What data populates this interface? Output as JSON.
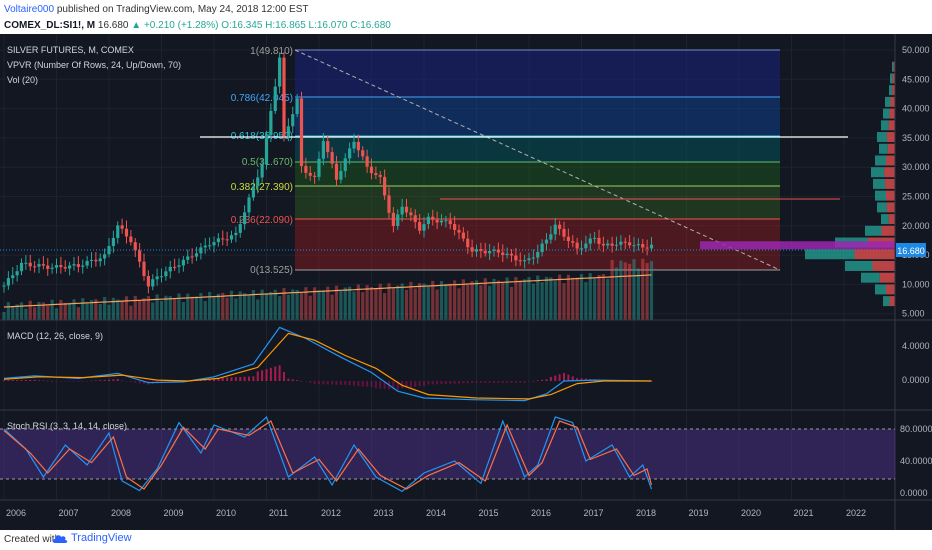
{
  "header": {
    "author": "Voltaire000",
    "published_text": "published on TradingView.com, May 24, 2018 12:00 EST",
    "symbol": "COMEX_DL:SI1!, M",
    "last": "16.680",
    "change": "+0.210 (+1.28%)",
    "ohlc_text": "O:16.345 H:16.865 L:16.070 C:16.680"
  },
  "legend": {
    "main": "SILVER FUTURES, M, COMEX",
    "vpvr": "VPVR (Number Of Rows, 24, Up/Down, 70)",
    "vol": "Vol (20)",
    "macd": "MACD (12, 26, close, 9)",
    "stoch": "Stoch RSI (3, 3, 14, 14, close)"
  },
  "footer": {
    "created_with": "Created with",
    "brand": "TradingView"
  },
  "colors": {
    "background": "#131722",
    "up": "#26a69a",
    "down": "#ef5350",
    "macd": "#2196f3",
    "signal": "#ff9800",
    "stoch_band": "#673ab7",
    "last_price_tag": "#1e88e5"
  },
  "chart_data": [
    {
      "type": "candlestick",
      "title": "SILVER FUTURES, M, COMEX",
      "x_ticks": [
        "2006",
        "2007",
        "2008",
        "2009",
        "2010",
        "2011",
        "2012",
        "2013",
        "2014",
        "2015",
        "2016",
        "2017",
        "2018",
        "2019",
        "2020",
        "2021",
        "2022"
      ],
      "y_ticks": [
        "50.000",
        "45.000",
        "40.000",
        "35.000",
        "30.000",
        "25.000",
        "20.000",
        "15.000",
        "10.000",
        "5.000"
      ],
      "ylim": [
        5,
        50
      ],
      "last_price_label": "16.680",
      "close_path": [
        [
          "2006-01",
          9.8
        ],
        [
          "2006-05",
          13.5
        ],
        [
          "2006-12",
          12.9
        ],
        [
          "2007-06",
          13.2
        ],
        [
          "2007-12",
          14.8
        ],
        [
          "2008-03",
          20.0
        ],
        [
          "2008-06",
          17.5
        ],
        [
          "2008-10",
          9.8
        ],
        [
          "2008-12",
          11.3
        ],
        [
          "2009-06",
          14.0
        ],
        [
          "2009-12",
          17.0
        ],
        [
          "2010-06",
          18.5
        ],
        [
          "2010-12",
          30.6
        ],
        [
          "2011-04",
          48.6
        ],
        [
          "2011-05",
          35.0
        ],
        [
          "2011-08",
          41.5
        ],
        [
          "2011-09",
          30.0
        ],
        [
          "2011-12",
          28.0
        ],
        [
          "2012-02",
          34.8
        ],
        [
          "2012-05",
          28.0
        ],
        [
          "2012-09",
          34.6
        ],
        [
          "2012-12",
          30.0
        ],
        [
          "2013-03",
          28.0
        ],
        [
          "2013-06",
          19.8
        ],
        [
          "2013-08",
          23.5
        ],
        [
          "2013-12",
          19.5
        ],
        [
          "2014-02",
          21.2
        ],
        [
          "2014-07",
          20.5
        ],
        [
          "2014-12",
          15.7
        ],
        [
          "2015-06",
          15.6
        ],
        [
          "2015-12",
          13.8
        ],
        [
          "2016-03",
          15.5
        ],
        [
          "2016-07",
          20.0
        ],
        [
          "2016-12",
          16.0
        ],
        [
          "2017-04",
          18.0
        ],
        [
          "2017-06",
          16.5
        ],
        [
          "2017-09",
          17.0
        ],
        [
          "2017-12",
          17.0
        ],
        [
          "2018-03",
          16.3
        ],
        [
          "2018-05",
          16.68
        ]
      ],
      "fibonacci": [
        {
          "level": "1",
          "price": "49.810"
        },
        {
          "level": "0.786",
          "price": "42.045"
        },
        {
          "level": "0.618",
          "price": "35.950"
        },
        {
          "level": "0.5",
          "price": "31.670"
        },
        {
          "level": "0.382",
          "price": "27.390"
        },
        {
          "level": "0.236",
          "price": "22.090"
        },
        {
          "level": "0",
          "price": "13.525"
        }
      ]
    },
    {
      "type": "line",
      "title": "MACD (12, 26, close, 9)",
      "y_ticks": [
        "4.0000",
        "0.0000"
      ],
      "series": [
        {
          "values": [
            [
              "2006-01",
              0.3
            ],
            [
              "2006-08",
              0.6
            ],
            [
              "2007-06",
              0.3
            ],
            [
              "2008-03",
              0.9
            ],
            [
              "2008-10",
              -0.2
            ],
            [
              "2009-06",
              -0.1
            ],
            [
              "2010-01",
              0.5
            ],
            [
              "2010-10",
              2.0
            ],
            [
              "2011-04",
              6.3
            ],
            [
              "2011-10",
              5.0
            ],
            [
              "2012-06",
              2.8
            ],
            [
              "2013-01",
              1.0
            ],
            [
              "2013-07",
              -1.2
            ],
            [
              "2014-01",
              -2.0
            ],
            [
              "2014-12",
              -2.2
            ],
            [
              "2015-12",
              -2.3
            ],
            [
              "2016-05",
              -1.5
            ],
            [
              "2016-09",
              0.0
            ],
            [
              "2017-04",
              0.1
            ],
            [
              "2018-05",
              0.0
            ]
          ]
        },
        {
          "values": [
            [
              "2006-01",
              0.2
            ],
            [
              "2006-09",
              0.5
            ],
            [
              "2007-07",
              0.4
            ],
            [
              "2008-04",
              0.7
            ],
            [
              "2008-12",
              0.1
            ],
            [
              "2009-07",
              0.0
            ],
            [
              "2010-02",
              0.3
            ],
            [
              "2010-11",
              1.6
            ],
            [
              "2011-06",
              5.6
            ],
            [
              "2011-12",
              4.8
            ],
            [
              "2012-07",
              3.0
            ],
            [
              "2013-02",
              1.5
            ],
            [
              "2013-08",
              -0.5
            ],
            [
              "2014-02",
              -1.6
            ],
            [
              "2015-01",
              -2.0
            ],
            [
              "2016-01",
              -2.1
            ],
            [
              "2016-06",
              -1.6
            ],
            [
              "2016-12",
              -0.3
            ],
            [
              "2017-06",
              0.0
            ],
            [
              "2018-05",
              0.0
            ]
          ]
        }
      ]
    },
    {
      "type": "line",
      "title": "Stoch RSI (3, 3, 14, 14, close)",
      "y_ticks": [
        "80.0000",
        "40.0000",
        "0.0000"
      ],
      "ylim": [
        0,
        100
      ],
      "series": [
        {
          "values": [
            [
              "2006-01",
              80
            ],
            [
              "2006-06",
              55
            ],
            [
              "2006-10",
              20
            ],
            [
              "2007-03",
              60
            ],
            [
              "2007-08",
              35
            ],
            [
              "2008-01",
              75
            ],
            [
              "2008-04",
              15
            ],
            [
              "2008-08",
              3
            ],
            [
              "2008-12",
              30
            ],
            [
              "2009-05",
              88
            ],
            [
              "2009-10",
              50
            ],
            [
              "2010-01",
              85
            ],
            [
              "2010-08",
              70
            ],
            [
              "2011-01",
              95
            ],
            [
              "2011-06",
              20
            ],
            [
              "2011-12",
              45
            ],
            [
              "2012-04",
              10
            ],
            [
              "2012-09",
              60
            ],
            [
              "2013-02",
              20
            ],
            [
              "2013-08",
              2
            ],
            [
              "2014-01",
              25
            ],
            [
              "2014-08",
              40
            ],
            [
              "2015-02",
              12
            ],
            [
              "2015-07",
              90
            ],
            [
              "2015-12",
              20
            ],
            [
              "2016-03",
              35
            ],
            [
              "2016-07",
              95
            ],
            [
              "2016-11",
              88
            ],
            [
              "2017-02",
              40
            ],
            [
              "2017-08",
              60
            ],
            [
              "2017-12",
              20
            ],
            [
              "2018-03",
              35
            ],
            [
              "2018-05",
              5
            ]
          ]
        },
        {
          "values": [
            [
              "2006-01",
              78
            ],
            [
              "2006-07",
              50
            ],
            [
              "2006-11",
              25
            ],
            [
              "2007-04",
              55
            ],
            [
              "2007-09",
              38
            ],
            [
              "2008-02",
              70
            ],
            [
              "2008-05",
              20
            ],
            [
              "2008-09",
              5
            ],
            [
              "2009-01",
              35
            ],
            [
              "2009-06",
              82
            ],
            [
              "2009-11",
              55
            ],
            [
              "2010-02",
              80
            ],
            [
              "2010-09",
              72
            ],
            [
              "2011-02",
              90
            ],
            [
              "2011-07",
              25
            ],
            [
              "2012-01",
              42
            ],
            [
              "2012-05",
              15
            ],
            [
              "2012-10",
              55
            ],
            [
              "2013-03",
              22
            ],
            [
              "2013-09",
              5
            ],
            [
              "2014-02",
              22
            ],
            [
              "2014-09",
              38
            ],
            [
              "2015-03",
              15
            ],
            [
              "2015-08",
              85
            ],
            [
              "2016-01",
              22
            ],
            [
              "2016-04",
              38
            ],
            [
              "2016-08",
              90
            ],
            [
              "2016-12",
              82
            ],
            [
              "2017-03",
              42
            ],
            [
              "2017-09",
              55
            ],
            [
              "2018-01",
              22
            ],
            [
              "2018-04",
              30
            ],
            [
              "2018-05",
              10
            ]
          ]
        }
      ]
    }
  ]
}
